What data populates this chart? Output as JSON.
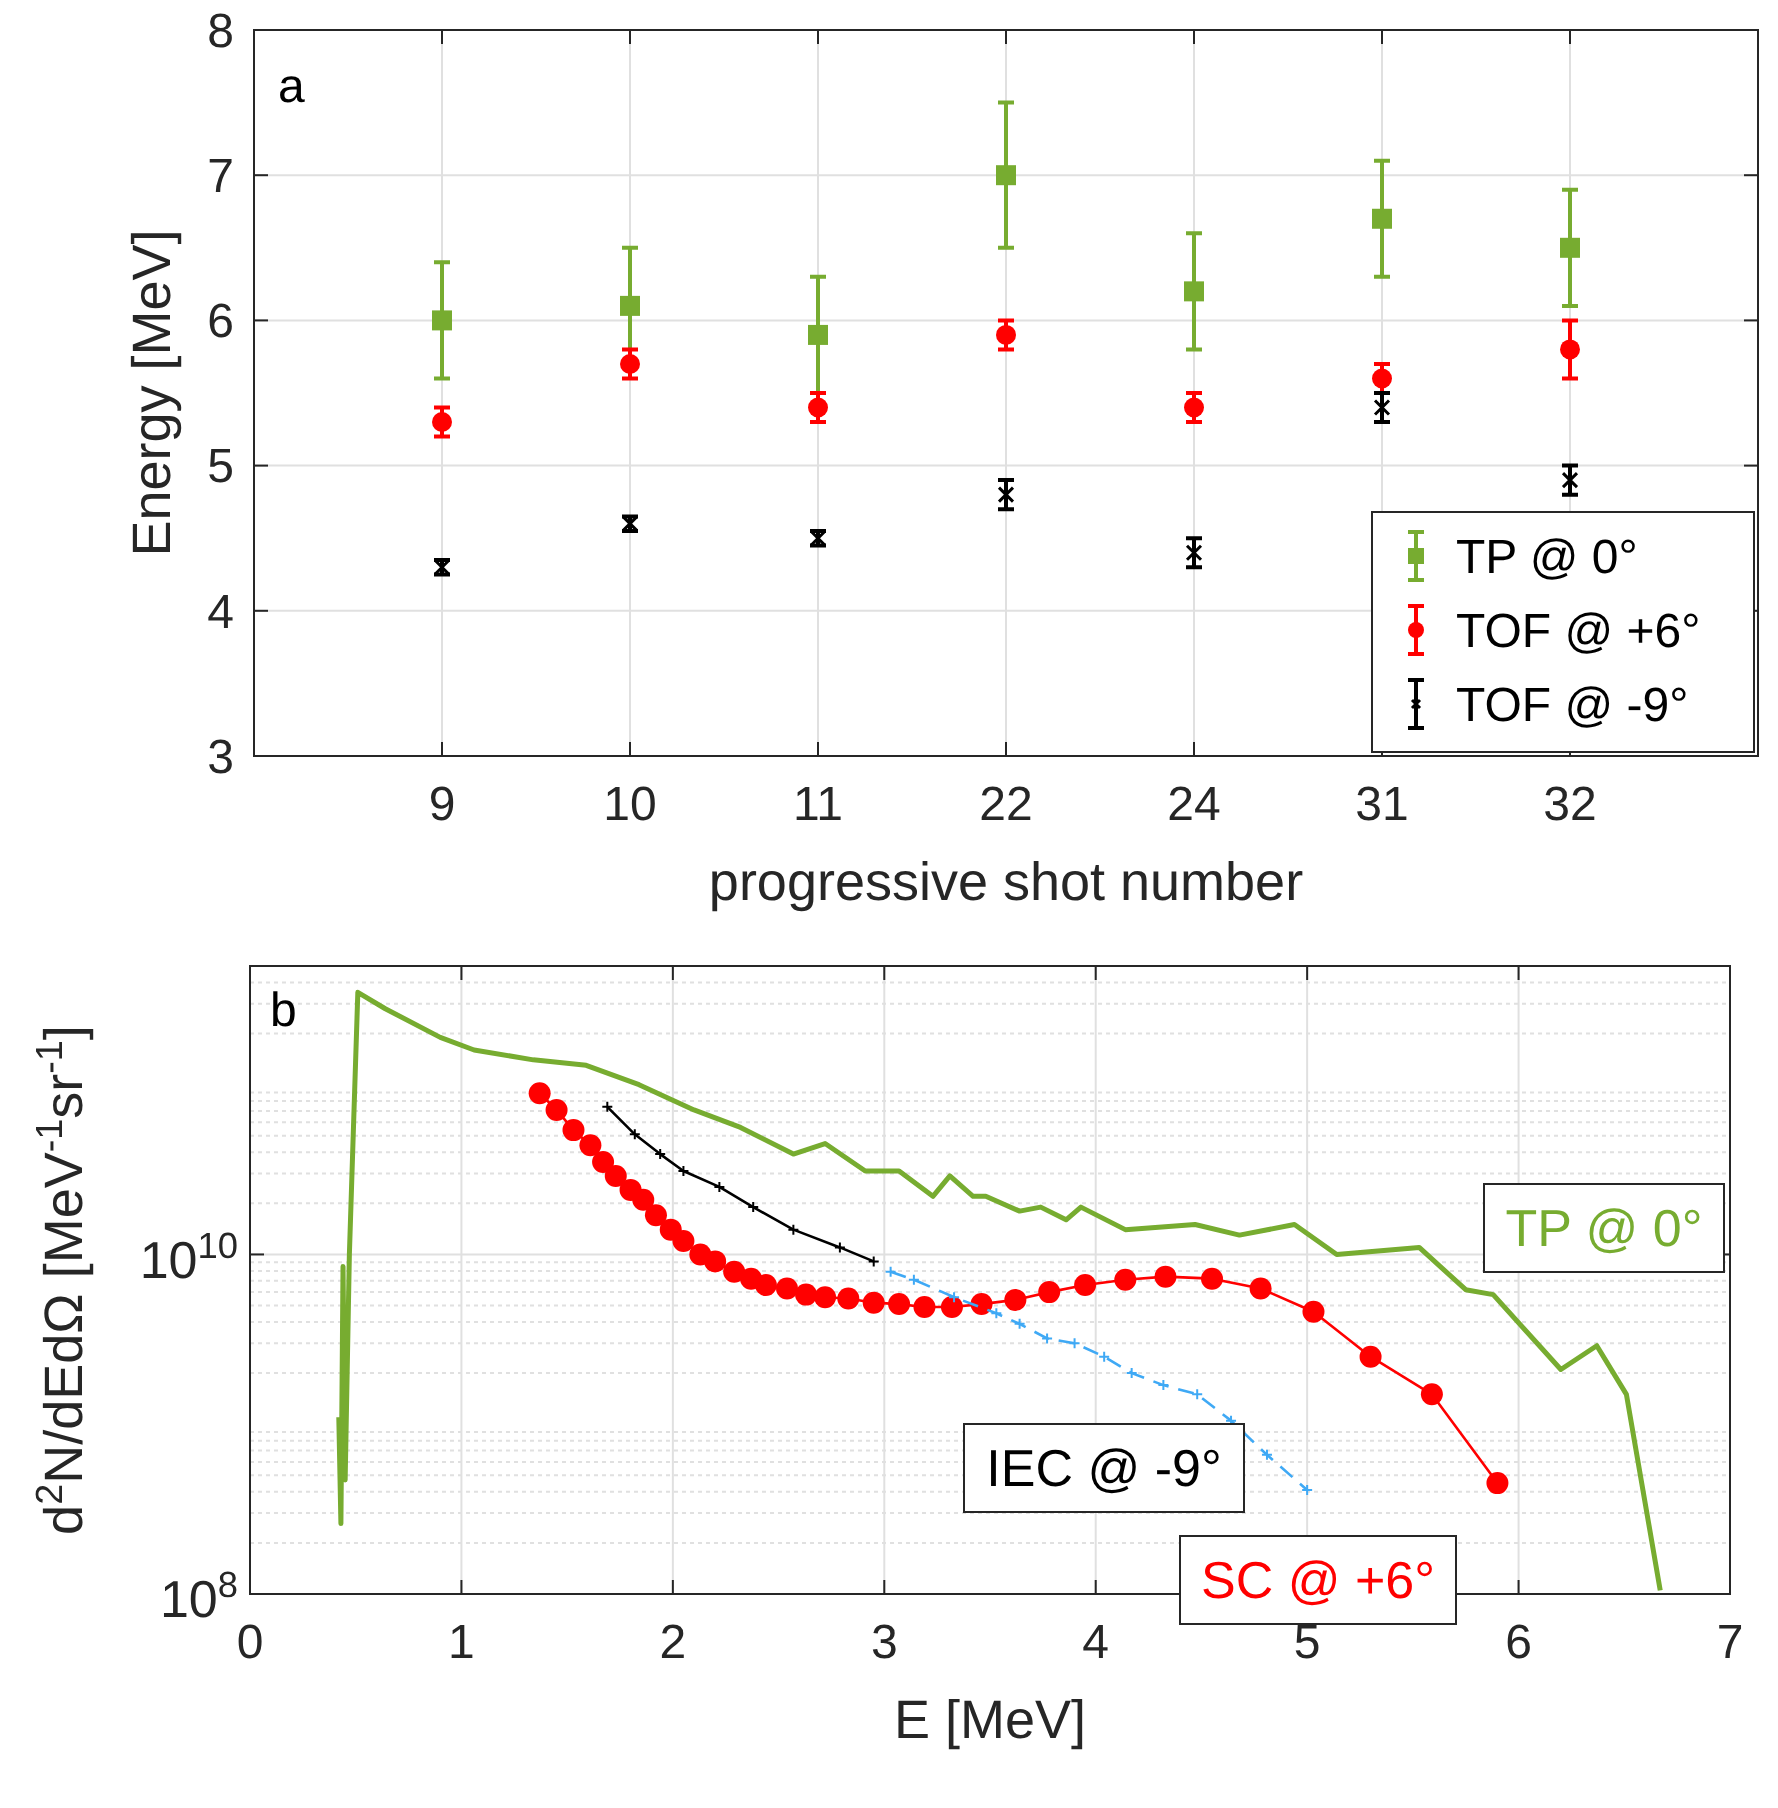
{
  "chart_data": [
    {
      "type": "scatter",
      "categories": [
        "9",
        "10",
        "11",
        "22",
        "24",
        "31",
        "32"
      ],
      "xlabel": "progressive shot number",
      "ylabel": "Energy [MeV]",
      "annotations": [
        "a"
      ],
      "ylim": [
        3,
        8
      ],
      "yticks": [
        3,
        4,
        5,
        6,
        7,
        8
      ],
      "grid": true,
      "legend": "bottom right",
      "series": [
        {
          "name": "TP @ 0°",
          "color": "#77ac30",
          "marker": "square",
          "values": [
            6.0,
            6.1,
            5.9,
            7.0,
            6.2,
            6.7,
            6.5
          ],
          "errors": [
            0.4,
            0.4,
            0.4,
            0.5,
            0.4,
            0.4,
            0.4
          ]
        },
        {
          "name": "TOF @ +6°",
          "color": "#ff0000",
          "marker": "circle",
          "values": [
            5.3,
            5.7,
            5.4,
            5.9,
            5.4,
            5.6,
            5.8
          ],
          "errors": [
            0.1,
            0.1,
            0.1,
            0.1,
            0.1,
            0.1,
            0.2
          ]
        },
        {
          "name": "TOF @ -9°",
          "color": "#000000",
          "marker": "cross",
          "values": [
            4.3,
            4.6,
            4.5,
            4.8,
            4.4,
            5.4,
            4.9
          ],
          "errors": [
            0.05,
            0.05,
            0.05,
            0.1,
            0.1,
            0.1,
            0.1
          ]
        }
      ]
    },
    {
      "type": "line",
      "xlabel": "E [MeV]",
      "ylabel": "d$^{2}$N/dEdΩ [MeV$^{-1}$sr$^{-1}$]",
      "annotations": [
        "b"
      ],
      "log": "y",
      "xlim": [
        0,
        7
      ],
      "xticks": [
        0,
        1,
        2,
        3,
        4,
        5,
        6,
        7
      ],
      "ylim": [
        100000000.0,
        500000000000.0
      ],
      "yticks": [
        {
          "value": 100000000.0,
          "label": "10$^{8}$"
        },
        {
          "value": 10000000000.0,
          "label": "10$^{10}$"
        }
      ],
      "grid": true,
      "series": [
        {
          "name": "TP @ 0°",
          "color": "#77ac30",
          "marker": "none",
          "line_style": "solid",
          "x": [
            0.42,
            0.43,
            0.44,
            0.45,
            0.47,
            0.51,
            0.64,
            0.9,
            1.06,
            1.34,
            1.59,
            1.84,
            2.1,
            2.32,
            2.57,
            2.72,
            2.91,
            3.07,
            3.23,
            3.31,
            3.42,
            3.48,
            3.64,
            3.74,
            3.86,
            3.93,
            4.14,
            4.47,
            4.68,
            4.94,
            5.14,
            5.53,
            5.75,
            5.88,
            6.2,
            6.37,
            6.51,
            6.67
          ],
          "values": [
            1100000000.0,
            260000000.0,
            8500000000.0,
            470000000.0,
            10000000000.0,
            350000000000.0,
            280000000000.0,
            190000000000.0,
            160000000000.0,
            140000000000.0,
            130000000000.0,
            100000000000.0,
            71000000000.0,
            56000000000.0,
            39000000000.0,
            45000000000.0,
            31000000000.0,
            31000000000.0,
            22000000000.0,
            29000000000.0,
            22000000000.0,
            22000000000.0,
            18000000000.0,
            19000000000.0,
            16000000000.0,
            19000000000.0,
            14000000000.0,
            15000000000.0,
            13000000000.0,
            15000000000.0,
            10000000000.0,
            11000000000.0,
            6200000000.0,
            5800000000.0,
            2100000000.0,
            2900000000.0,
            1500000000.0,
            105000000.0
          ]
        },
        {
          "name": "SC @ +6°",
          "color": "#ff0000",
          "marker": "circle",
          "line_style": "solid",
          "x": [
            1.37,
            1.45,
            1.53,
            1.61,
            1.67,
            1.73,
            1.8,
            1.86,
            1.92,
            1.99,
            2.05,
            2.13,
            2.2,
            2.29,
            2.37,
            2.44,
            2.54,
            2.63,
            2.72,
            2.83,
            2.95,
            3.07,
            3.19,
            3.32,
            3.46,
            3.62,
            3.78,
            3.95,
            4.14,
            4.33,
            4.55,
            4.78,
            5.03,
            5.3,
            5.59,
            5.9
          ],
          "values": [
            89000000000.0,
            71000000000.0,
            54000000000.0,
            44000000000.0,
            35000000000.0,
            29000000000.0,
            24000000000.0,
            21000000000.0,
            17000000000.0,
            14000000000.0,
            12000000000.0,
            10000000000.0,
            9100000000.0,
            7900000000.0,
            7200000000.0,
            6600000000.0,
            6300000000.0,
            5800000000.0,
            5600000000.0,
            5500000000.0,
            5200000000.0,
            5100000000.0,
            4900000000.0,
            4900000000.0,
            5100000000.0,
            5400000000.0,
            6000000000.0,
            6600000000.0,
            7100000000.0,
            7400000000.0,
            7200000000.0,
            6300000000.0,
            4600000000.0,
            2500000000.0,
            1500000000.0,
            450000000.0
          ]
        },
        {
          "name": "IEC @ -9°",
          "color": "#000000",
          "marker": "cross",
          "line_style": "solid",
          "x": [
            1.69,
            1.82,
            1.94,
            2.05,
            2.22,
            2.38,
            2.57,
            2.79,
            2.95
          ],
          "values": [
            74000000000.0,
            51000000000.0,
            39000000000.0,
            31000000000.0,
            25000000000.0,
            19000000000.0,
            14000000000.0,
            11000000000.0,
            9100000000.0
          ]
        },
        {
          "color": "#3fa9f5",
          "marker": "cross",
          "line_style": "dashed",
          "x": [
            3.03,
            3.14,
            3.33,
            3.53,
            3.64,
            3.77,
            3.9,
            4.04,
            4.17,
            4.32,
            4.48,
            4.64,
            4.81,
            5.0
          ],
          "values": [
            7900000000.0,
            7100000000.0,
            5600000000.0,
            4500000000.0,
            3900000000.0,
            3200000000.0,
            3000000000.0,
            2500000000.0,
            2000000000.0,
            1700000000.0,
            1500000000.0,
            1050000000.0,
            660000000.0,
            410000000.0
          ]
        }
      ]
    }
  ]
}
